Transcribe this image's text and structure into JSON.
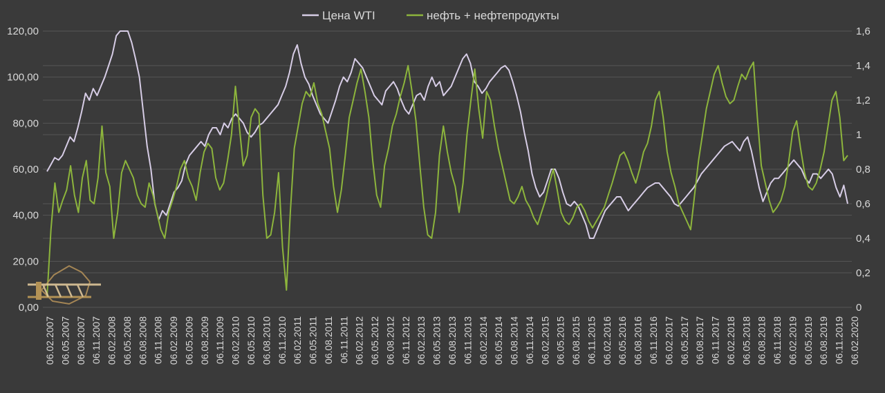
{
  "chart_data": {
    "type": "line",
    "title": "",
    "xlabel": "",
    "ylabel": "",
    "y_left_lim": [
      0,
      120
    ],
    "y_right_lim": [
      0,
      1.6
    ],
    "y_left_ticks": [
      "0,00",
      "20,00",
      "40,00",
      "60,00",
      "80,00",
      "100,00",
      "120,00"
    ],
    "y_right_ticks": [
      "0",
      "0,2",
      "0,4",
      "0,6",
      "0,8",
      "1",
      "1,2",
      "1,4",
      "1,6"
    ],
    "grid": true,
    "legend_position": "top-center",
    "x_tick_labels": [
      "06.02.2007",
      "06.05.2007",
      "06.08.2007",
      "06.11.2007",
      "06.02.2008",
      "06.05.2008",
      "06.08.2008",
      "06.11.2008",
      "06.02.2009",
      "06.05.2009",
      "06.08.2009",
      "06.11.2009",
      "06.02.2010",
      "06.05.2010",
      "06.08.2010",
      "06.11.2010",
      "06.02.2011",
      "06.05.2011",
      "06.08.2011",
      "06.11.2011",
      "06.02.2012",
      "06.05.2012",
      "06.08.2012",
      "06.11.2012",
      "06.02.2013",
      "06.05.2013",
      "06.08.2013",
      "06.11.2013",
      "06.02.2014",
      "06.05.2014",
      "06.08.2014",
      "06.11.2014",
      "06.02.2015",
      "06.05.2015",
      "06.08.2015",
      "06.11.2015",
      "06.02.2016",
      "06.05.2016",
      "06.08.2016",
      "06.11.2016",
      "06.02.2017",
      "06.05.2017",
      "06.08.2017",
      "06.11.2017",
      "06.02.2018",
      "06.05.2018",
      "06.08.2018",
      "06.11.2018",
      "06.02.2019",
      "06.05.2019",
      "06.08.2019",
      "06.11.2019",
      "06.02.2020"
    ],
    "series": [
      {
        "name": "Цена WTI",
        "axis": "left",
        "color": "#d7cde6",
        "values": [
          59,
          62,
          65,
          64,
          66,
          70,
          74,
          72,
          78,
          85,
          93,
          90,
          95,
          92,
          96,
          100,
          105,
          110,
          118,
          124,
          126,
          121,
          115,
          108,
          100,
          85,
          70,
          60,
          45,
          38,
          42,
          40,
          45,
          50,
          52,
          55,
          62,
          66,
          68,
          70,
          72,
          70,
          75,
          78,
          78,
          75,
          80,
          78,
          82,
          84,
          82,
          80,
          76,
          74,
          76,
          79,
          80,
          82,
          84,
          86,
          88,
          92,
          96,
          102,
          110,
          114,
          106,
          100,
          97,
          92,
          88,
          84,
          82,
          80,
          85,
          90,
          96,
          100,
          98,
          102,
          108,
          106,
          104,
          100,
          96,
          92,
          90,
          88,
          94,
          96,
          98,
          95,
          90,
          86,
          84,
          88,
          92,
          93,
          90,
          96,
          100,
          96,
          98,
          92,
          94,
          96,
          100,
          104,
          108,
          110,
          106,
          98,
          96,
          93,
          95,
          98,
          100,
          102,
          104,
          105,
          103,
          98,
          92,
          85,
          76,
          68,
          58,
          52,
          48,
          50,
          55,
          60,
          60,
          56,
          50,
          45,
          44,
          46,
          44,
          40,
          36,
          30,
          30,
          34,
          38,
          42,
          44,
          46,
          48,
          48,
          45,
          42,
          44,
          46,
          48,
          50,
          52,
          53,
          54,
          54,
          52,
          50,
          48,
          45,
          44,
          46,
          48,
          50,
          52,
          55,
          58,
          60,
          62,
          64,
          66,
          68,
          70,
          71,
          72,
          70,
          68,
          72,
          74,
          68,
          60,
          52,
          46,
          50,
          54,
          56,
          56,
          58,
          60,
          62,
          64,
          62,
          60,
          56,
          54,
          58,
          58,
          56,
          58,
          60,
          58,
          52,
          48,
          53,
          45
        ]
      },
      {
        "name": "нефть + нефтепродукты",
        "axis": "right",
        "color": "#8db53c",
        "values": [
          0.06,
          0.45,
          0.72,
          0.55,
          0.62,
          0.68,
          0.82,
          0.65,
          0.55,
          0.75,
          0.85,
          0.62,
          0.6,
          0.75,
          1.05,
          0.78,
          0.7,
          0.4,
          0.55,
          0.78,
          0.85,
          0.8,
          0.75,
          0.65,
          0.6,
          0.58,
          0.72,
          0.65,
          0.55,
          0.45,
          0.4,
          0.55,
          0.62,
          0.7,
          0.8,
          0.85,
          0.75,
          0.7,
          0.62,
          0.78,
          0.9,
          0.95,
          0.92,
          0.75,
          0.68,
          0.72,
          0.85,
          1.0,
          1.28,
          1.05,
          0.82,
          0.88,
          1.1,
          1.15,
          1.12,
          0.65,
          0.4,
          0.42,
          0.55,
          0.78,
          0.35,
          0.1,
          0.55,
          0.92,
          1.05,
          1.18,
          1.25,
          1.22,
          1.3,
          1.18,
          1.12,
          1.02,
          0.92,
          0.7,
          0.55,
          0.68,
          0.88,
          1.1,
          1.2,
          1.3,
          1.38,
          1.25,
          1.1,
          0.85,
          0.65,
          0.58,
          0.82,
          0.92,
          1.05,
          1.12,
          1.22,
          1.3,
          1.4,
          1.25,
          1.08,
          0.82,
          0.58,
          0.42,
          0.4,
          0.55,
          0.88,
          1.05,
          0.9,
          0.78,
          0.7,
          0.55,
          0.72,
          1.0,
          1.2,
          1.38,
          1.15,
          0.98,
          1.25,
          1.2,
          1.05,
          0.92,
          0.82,
          0.72,
          0.62,
          0.6,
          0.64,
          0.7,
          0.62,
          0.58,
          0.52,
          0.48,
          0.55,
          0.62,
          0.72,
          0.8,
          0.68,
          0.55,
          0.5,
          0.48,
          0.52,
          0.58,
          0.6,
          0.56,
          0.5,
          0.46,
          0.5,
          0.54,
          0.58,
          0.65,
          0.72,
          0.8,
          0.88,
          0.9,
          0.85,
          0.78,
          0.72,
          0.8,
          0.9,
          0.95,
          1.05,
          1.2,
          1.25,
          1.1,
          0.9,
          0.78,
          0.7,
          0.6,
          0.55,
          0.5,
          0.45,
          0.65,
          0.85,
          1.0,
          1.15,
          1.25,
          1.35,
          1.4,
          1.3,
          1.22,
          1.18,
          1.2,
          1.28,
          1.35,
          1.32,
          1.38,
          1.42,
          1.1,
          0.82,
          0.72,
          0.62,
          0.55,
          0.58,
          0.62,
          0.7,
          0.85,
          1.02,
          1.08,
          0.92,
          0.78,
          0.7,
          0.68,
          0.72,
          0.8,
          0.9,
          1.05,
          1.2,
          1.25,
          1.1,
          0.85,
          0.88
        ]
      }
    ]
  },
  "colors": {
    "background": "#3a3a3a",
    "grid": "#565656",
    "text": "#d9d9d9"
  },
  "watermark": {
    "kind": "logo",
    "text": ""
  }
}
